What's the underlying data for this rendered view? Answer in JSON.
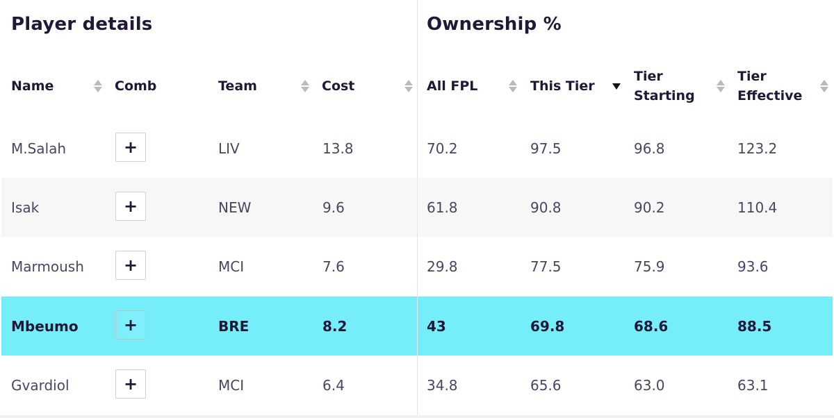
{
  "sections": {
    "player_details": "Player details",
    "ownership": "Ownership %"
  },
  "columns": {
    "name": "Name",
    "comb": "Comb",
    "team": "Team",
    "cost": "Cost",
    "all_fpl": "All FPL",
    "this_tier": "This Tier",
    "tier_starting": "Tier\nStarting",
    "tier_effective": "Tier\nEffective"
  },
  "sort": {
    "column": "this_tier",
    "direction": "descending"
  },
  "add_button_glyph": "+",
  "highlight_color": "#76eefa",
  "rows": [
    {
      "name": "M.Salah",
      "team": "LIV",
      "cost": "13.8",
      "all_fpl": "70.2",
      "this_tier": "97.5",
      "tier_starting": "96.8",
      "tier_effective": "123.2"
    },
    {
      "name": "Isak",
      "team": "NEW",
      "cost": "9.6",
      "all_fpl": "61.8",
      "this_tier": "90.8",
      "tier_starting": "90.2",
      "tier_effective": "110.4"
    },
    {
      "name": "Marmoush",
      "team": "MCI",
      "cost": "7.6",
      "all_fpl": "29.8",
      "this_tier": "77.5",
      "tier_starting": "75.9",
      "tier_effective": "93.6"
    },
    {
      "name": "Mbeumo",
      "team": "BRE",
      "cost": "8.2",
      "all_fpl": "43",
      "this_tier": "69.8",
      "tier_starting": "68.6",
      "tier_effective": "88.5",
      "highlighted": true
    },
    {
      "name": "Gvardiol",
      "team": "MCI",
      "cost": "6.4",
      "all_fpl": "34.8",
      "this_tier": "65.6",
      "tier_starting": "63.0",
      "tier_effective": "63.1"
    }
  ]
}
